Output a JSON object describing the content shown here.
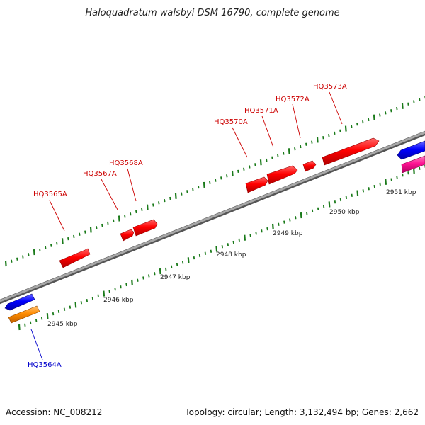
{
  "title": "Haloquadratum walsbyi DSM 16790, complete genome",
  "footer": {
    "accession": "Accession: NC_008212",
    "summary": "Topology: circular; Length: 3,132,494 bp; Genes: 2,662"
  },
  "colors": {
    "forward_gene": "#ff0000",
    "reverse_gene_a": "#0000ff",
    "reverse_gene_b": "#ff8c00",
    "reverse_gene_c": "#ff1493",
    "tick": "#1a7a1a",
    "backbone": "#808080",
    "label_forward": "#cc0000",
    "label_reverse": "#0000cc"
  },
  "axis_labels": [
    "2945 kbp",
    "2946 kbp",
    "2947 kbp",
    "2948 kbp",
    "2949 kbp",
    "2950 kbp",
    "2951 kbp"
  ],
  "gene_labels": [
    {
      "name": "HQ3564A",
      "strand": "reverse"
    },
    {
      "name": "HQ3565A",
      "strand": "forward"
    },
    {
      "name": "HQ3567A",
      "strand": "forward"
    },
    {
      "name": "HQ3568A",
      "strand": "forward"
    },
    {
      "name": "HQ3570A",
      "strand": "forward"
    },
    {
      "name": "HQ3571A",
      "strand": "forward"
    },
    {
      "name": "HQ3572A",
      "strand": "forward"
    },
    {
      "name": "HQ3573A",
      "strand": "forward"
    }
  ]
}
